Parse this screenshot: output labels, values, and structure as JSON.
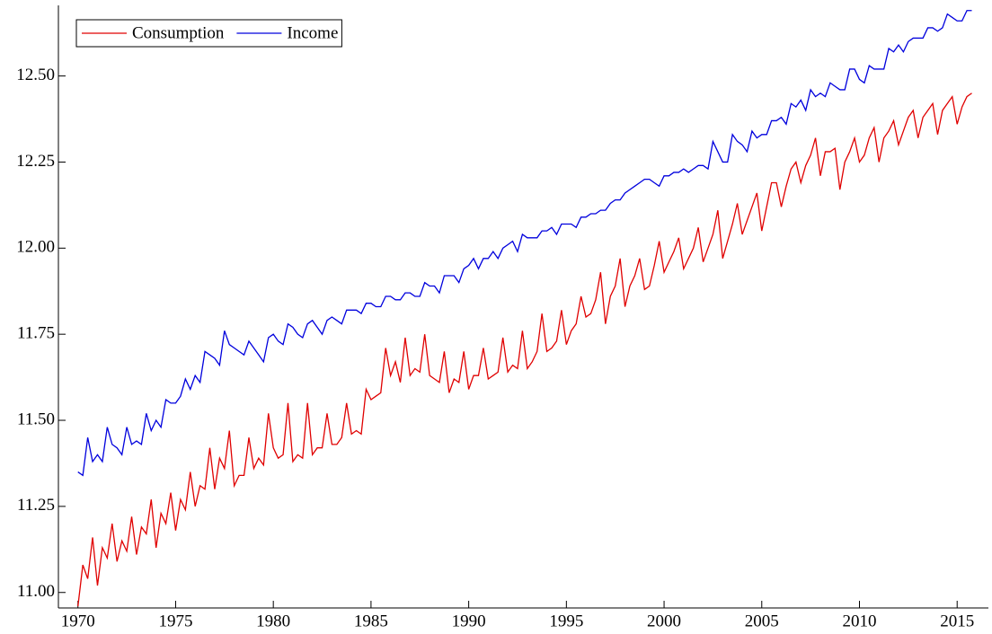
{
  "chart_data": {
    "type": "line",
    "x": [
      1970,
      1970.25,
      1970.5,
      1970.75,
      1971,
      1971.25,
      1971.5,
      1971.75,
      1972,
      1972.25,
      1972.5,
      1972.75,
      1973,
      1973.25,
      1973.5,
      1973.75,
      1974,
      1974.25,
      1974.5,
      1974.75,
      1975,
      1975.25,
      1975.5,
      1975.75,
      1976,
      1976.25,
      1976.5,
      1976.75,
      1977,
      1977.25,
      1977.5,
      1977.75,
      1978,
      1978.25,
      1978.5,
      1978.75,
      1979,
      1979.25,
      1979.5,
      1979.75,
      1980,
      1980.25,
      1980.5,
      1980.75,
      1981,
      1981.25,
      1981.5,
      1981.75,
      1982,
      1982.25,
      1982.5,
      1982.75,
      1983,
      1983.25,
      1983.5,
      1983.75,
      1984,
      1984.25,
      1984.5,
      1984.75,
      1985,
      1985.25,
      1985.5,
      1985.75,
      1986,
      1986.25,
      1986.5,
      1986.75,
      1987,
      1987.25,
      1987.5,
      1987.75,
      1988,
      1988.25,
      1988.5,
      1988.75,
      1989,
      1989.25,
      1989.5,
      1989.75,
      1990,
      1990.25,
      1990.5,
      1990.75,
      1991,
      1991.25,
      1991.5,
      1991.75,
      1992,
      1992.25,
      1992.5,
      1992.75,
      1993,
      1993.25,
      1993.5,
      1993.75,
      1994,
      1994.25,
      1994.5,
      1994.75,
      1995,
      1995.25,
      1995.5,
      1995.75,
      1996,
      1996.25,
      1996.5,
      1996.75,
      1997,
      1997.25,
      1997.5,
      1997.75,
      1998,
      1998.25,
      1998.5,
      1998.75,
      1999,
      1999.25,
      1999.5,
      1999.75,
      2000,
      2000.25,
      2000.5,
      2000.75,
      2001,
      2001.25,
      2001.5,
      2001.75,
      2002,
      2002.25,
      2002.5,
      2002.75,
      2003,
      2003.25,
      2003.5,
      2003.75,
      2004,
      2004.25,
      2004.5,
      2004.75,
      2005,
      2005.25,
      2005.5,
      2005.75,
      2006,
      2006.25,
      2006.5,
      2006.75,
      2007,
      2007.25,
      2007.5,
      2007.75,
      2008,
      2008.25,
      2008.5,
      2008.75,
      2009,
      2009.25,
      2009.5,
      2009.75,
      2010,
      2010.25,
      2010.5,
      2010.75,
      2011,
      2011.25,
      2011.5,
      2011.75,
      2012,
      2012.25,
      2012.5,
      2012.75,
      2013,
      2013.25,
      2013.5,
      2013.75,
      2014,
      2014.25,
      2014.5,
      2014.75,
      2015,
      2015.25,
      2015.5,
      2015.75
    ],
    "series": [
      {
        "name": "Consumption",
        "color": "#e00000",
        "values": [
          10.96,
          11.08,
          11.04,
          11.16,
          11.02,
          11.13,
          11.1,
          11.2,
          11.09,
          11.15,
          11.12,
          11.22,
          11.11,
          11.19,
          11.17,
          11.27,
          11.13,
          11.23,
          11.2,
          11.29,
          11.18,
          11.27,
          11.24,
          11.35,
          11.25,
          11.31,
          11.3,
          11.42,
          11.3,
          11.39,
          11.36,
          11.47,
          11.31,
          11.34,
          11.34,
          11.45,
          11.36,
          11.39,
          11.37,
          11.52,
          11.42,
          11.39,
          11.4,
          11.55,
          11.38,
          11.4,
          11.39,
          11.55,
          11.4,
          11.42,
          11.42,
          11.52,
          11.43,
          11.43,
          11.45,
          11.55,
          11.46,
          11.47,
          11.46,
          11.59,
          11.56,
          11.57,
          11.58,
          11.71,
          11.63,
          11.67,
          11.61,
          11.74,
          11.63,
          11.65,
          11.64,
          11.75,
          11.63,
          11.62,
          11.61,
          11.7,
          11.58,
          11.62,
          11.61,
          11.7,
          11.59,
          11.63,
          11.63,
          11.71,
          11.62,
          11.63,
          11.64,
          11.74,
          11.64,
          11.66,
          11.65,
          11.76,
          11.65,
          11.67,
          11.7,
          11.81,
          11.7,
          11.71,
          11.73,
          11.82,
          11.72,
          11.76,
          11.78,
          11.86,
          11.8,
          11.81,
          11.85,
          11.93,
          11.78,
          11.86,
          11.89,
          11.97,
          11.83,
          11.89,
          11.92,
          11.97,
          11.88,
          11.89,
          11.95,
          12.02,
          11.93,
          11.96,
          11.99,
          12.03,
          11.94,
          11.97,
          12.0,
          12.06,
          11.96,
          12.0,
          12.04,
          12.11,
          11.97,
          12.02,
          12.07,
          12.13,
          12.04,
          12.08,
          12.12,
          12.16,
          12.05,
          12.12,
          12.19,
          12.19,
          12.12,
          12.18,
          12.23,
          12.25,
          12.19,
          12.24,
          12.27,
          12.32,
          12.21,
          12.28,
          12.28,
          12.29,
          12.17,
          12.25,
          12.28,
          12.32,
          12.25,
          12.27,
          12.32,
          12.35,
          12.25,
          12.32,
          12.34,
          12.37,
          12.3,
          12.34,
          12.38,
          12.4,
          12.32,
          12.38,
          12.4,
          12.42,
          12.33,
          12.4,
          12.42,
          12.44,
          12.36,
          12.41,
          12.44,
          12.45
        ]
      },
      {
        "name": "Income",
        "color": "#0000dd",
        "values": [
          11.35,
          11.34,
          11.45,
          11.38,
          11.4,
          11.38,
          11.48,
          11.43,
          11.42,
          11.4,
          11.48,
          11.43,
          11.44,
          11.43,
          11.52,
          11.47,
          11.5,
          11.48,
          11.56,
          11.55,
          11.55,
          11.57,
          11.62,
          11.59,
          11.63,
          11.61,
          11.7,
          11.69,
          11.68,
          11.66,
          11.76,
          11.72,
          11.71,
          11.7,
          11.69,
          11.73,
          11.71,
          11.69,
          11.67,
          11.74,
          11.75,
          11.73,
          11.72,
          11.78,
          11.77,
          11.75,
          11.74,
          11.78,
          11.79,
          11.77,
          11.75,
          11.79,
          11.8,
          11.79,
          11.78,
          11.82,
          11.82,
          11.82,
          11.81,
          11.84,
          11.84,
          11.83,
          11.83,
          11.86,
          11.86,
          11.85,
          11.85,
          11.87,
          11.87,
          11.86,
          11.86,
          11.9,
          11.89,
          11.89,
          11.87,
          11.92,
          11.92,
          11.92,
          11.9,
          11.94,
          11.95,
          11.97,
          11.94,
          11.97,
          11.97,
          11.99,
          11.97,
          12.0,
          12.01,
          12.02,
          11.99,
          12.04,
          12.03,
          12.03,
          12.03,
          12.05,
          12.05,
          12.06,
          12.04,
          12.07,
          12.07,
          12.07,
          12.06,
          12.09,
          12.09,
          12.1,
          12.1,
          12.11,
          12.11,
          12.13,
          12.14,
          12.14,
          12.16,
          12.17,
          12.18,
          12.19,
          12.2,
          12.2,
          12.19,
          12.18,
          12.21,
          12.21,
          12.22,
          12.22,
          12.23,
          12.22,
          12.23,
          12.24,
          12.24,
          12.23,
          12.31,
          12.28,
          12.25,
          12.25,
          12.33,
          12.31,
          12.3,
          12.28,
          12.34,
          12.32,
          12.33,
          12.33,
          12.37,
          12.37,
          12.38,
          12.36,
          12.42,
          12.41,
          12.43,
          12.4,
          12.46,
          12.44,
          12.45,
          12.44,
          12.48,
          12.47,
          12.46,
          12.46,
          12.52,
          12.52,
          12.49,
          12.48,
          12.53,
          12.52,
          12.52,
          12.52,
          12.58,
          12.57,
          12.59,
          12.57,
          12.6,
          12.61,
          12.61,
          12.61,
          12.64,
          12.64,
          12.63,
          12.64,
          12.68,
          12.67,
          12.66,
          12.66,
          12.69,
          12.69
        ]
      }
    ],
    "xlim": [
      1969,
      2016.6
    ],
    "xticks": [
      1970,
      1975,
      1980,
      1985,
      1990,
      1995,
      2000,
      2005,
      2010,
      2015
    ],
    "ylim": [
      10.955,
      12.705
    ],
    "yticks": [
      {
        "value": 11,
        "label": "11.00"
      },
      11.25,
      {
        "value": 11.5,
        "label": "11.50"
      },
      11.75,
      {
        "value": 12,
        "label": "12.00"
      },
      12.25,
      {
        "value": 12.5,
        "label": "12.50"
      }
    ],
    "legend": "upper left",
    "grid": false
  }
}
